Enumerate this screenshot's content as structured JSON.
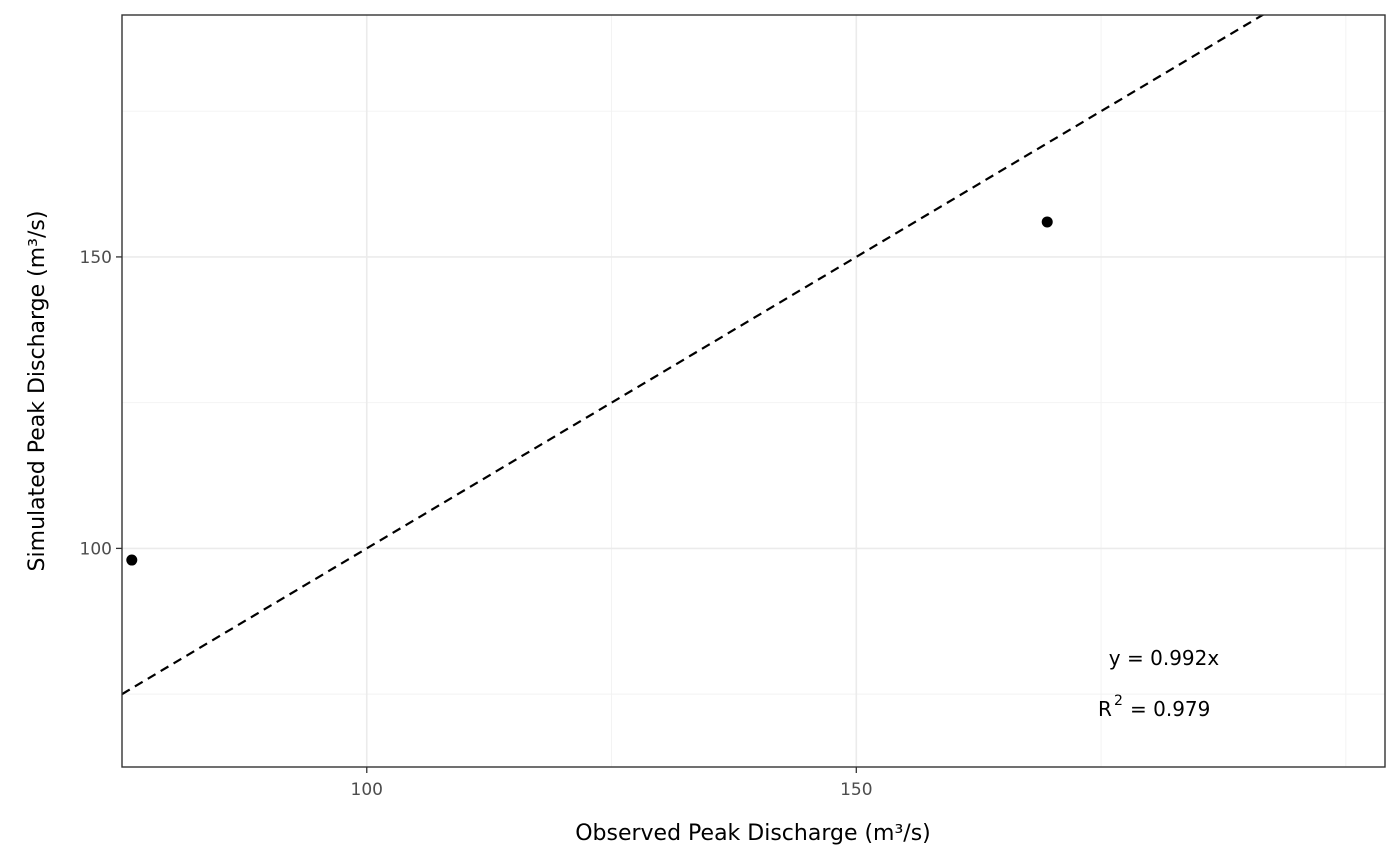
{
  "chart_data": {
    "type": "scatter",
    "xlabel": "Observed Peak Discharge (m³/s)",
    "ylabel": "Simulated Peak Discharge (m³/s)",
    "xlim": [
      75,
      204
    ],
    "ylim": [
      62.5,
      191.5
    ],
    "x_ticks": [
      100,
      150
    ],
    "y_ticks": [
      100,
      150
    ],
    "grid": true,
    "points": [
      {
        "x": 76,
        "y": 98
      },
      {
        "x": 169.5,
        "y": 156
      }
    ],
    "reference_line": {
      "slope": 1,
      "intercept": 0,
      "style": "dashed"
    },
    "annotations": {
      "equation": "y = 0.992x",
      "r2_label": "R",
      "r2_superscript": "2",
      "r2_value": "= 0.979"
    },
    "colors": {
      "points": "#000000",
      "line": "#000000",
      "panel_border": "#333333",
      "grid": "#ebebeb"
    }
  }
}
